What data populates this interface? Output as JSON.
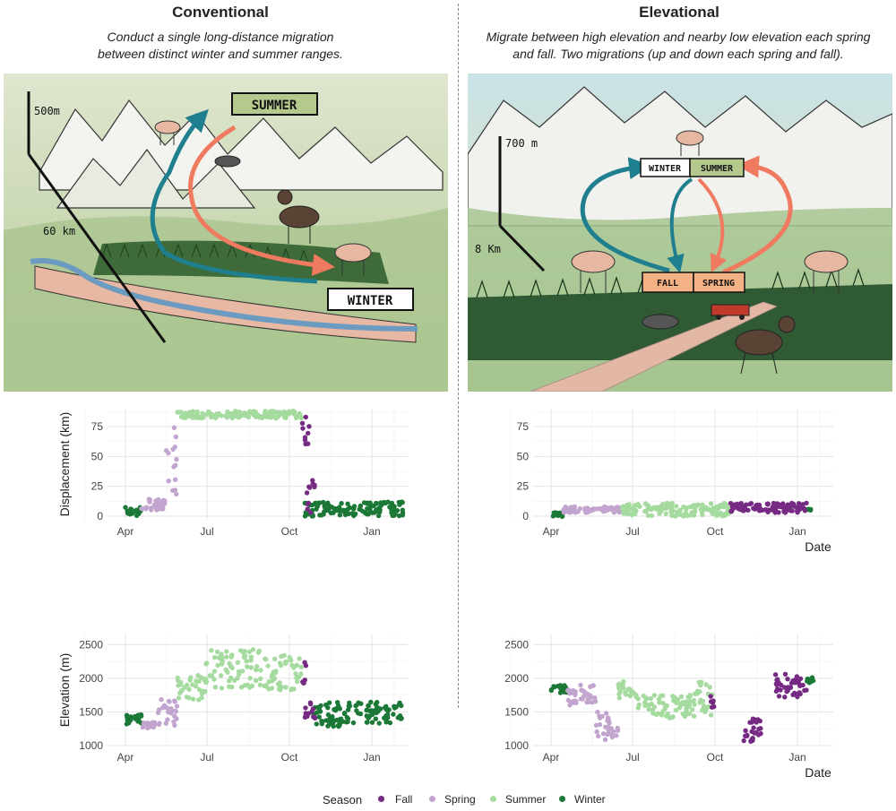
{
  "left": {
    "title": "Conventional",
    "subtitle_line1": "Conduct a single long-distance migration",
    "subtitle_line2": "between distinct winter and summer ranges.",
    "illustration": {
      "scale_vertical": "500m",
      "scale_horizontal": "60 km",
      "label_summer": "SUMMER",
      "label_winter": "WINTER"
    }
  },
  "right": {
    "title": "Elevational",
    "subtitle_line1": "Migrate between high elevation and nearby low elevation each spring",
    "subtitle_line2": "and fall. Two migrations (up and down each spring and fall).",
    "illustration": {
      "scale_vertical": "700 m",
      "scale_horizontal": "8 Km",
      "label_winter": "WINTER",
      "label_summer": "SUMMER",
      "label_fall": "FALL",
      "label_spring": "SPRING"
    }
  },
  "colors": {
    "Fall": "#762a83",
    "Spring": "#c2a5cf",
    "Summer": "#a6dba0",
    "Winter": "#1b7837",
    "teal_arrow": "#1f7f8f",
    "salmon_arrow": "#f07a5f"
  },
  "legend": {
    "title": "Season",
    "items": [
      "Fall",
      "Spring",
      "Summer",
      "Winter"
    ]
  },
  "chart_data": [
    {
      "id": "conv-disp",
      "type": "scatter",
      "panel": "Conventional",
      "xlabel": "",
      "ylabel": "Displacement (km)",
      "x_ticks": [
        "Apr",
        "Jul",
        "Oct",
        "Jan"
      ],
      "y_ticks": [
        0,
        25,
        50,
        75
      ],
      "ylim": [
        -3,
        90
      ],
      "series": [
        {
          "name": "Winter",
          "segments": [
            {
              "x": [
                0,
                18
              ],
              "y": [
                0,
                8
              ]
            },
            {
              "x": [
                200,
                310
              ],
              "y": [
                0,
                12
              ]
            }
          ]
        },
        {
          "name": "Spring",
          "segments": [
            {
              "x": [
                18,
                45
              ],
              "y": [
                5,
                15
              ]
            },
            {
              "x": [
                45,
                58
              ],
              "y": [
                15,
                80
              ]
            }
          ]
        },
        {
          "name": "Summer",
          "segments": [
            {
              "x": [
                58,
                197
              ],
              "y": [
                82,
                88
              ]
            }
          ]
        },
        {
          "name": "Fall",
          "segments": [
            {
              "x": [
                197,
                205
              ],
              "y": [
                60,
                88
              ]
            },
            {
              "x": [
                202,
                212
              ],
              "y": [
                3,
                35
              ]
            }
          ]
        }
      ]
    },
    {
      "id": "elev-disp",
      "type": "scatter",
      "panel": "Elevational",
      "xlabel": "Date",
      "ylabel": "",
      "x_ticks": [
        "Apr",
        "Jul",
        "Oct",
        "Jan"
      ],
      "y_ticks": [
        0,
        25,
        50,
        75
      ],
      "ylim": [
        -3,
        90
      ],
      "series": [
        {
          "name": "Winter",
          "segments": [
            {
              "x": [
                0,
                14
              ],
              "y": [
                -1,
                3
              ]
            },
            {
              "x": [
                285,
                290
              ],
              "y": [
                5,
                6
              ]
            }
          ]
        },
        {
          "name": "Spring",
          "segments": [
            {
              "x": [
                14,
                80
              ],
              "y": [
                3,
                8
              ]
            }
          ]
        },
        {
          "name": "Summer",
          "segments": [
            {
              "x": [
                80,
                200
              ],
              "y": [
                0,
                11
              ]
            }
          ]
        },
        {
          "name": "Fall",
          "segments": [
            {
              "x": [
                200,
                285
              ],
              "y": [
                3,
                11
              ]
            }
          ]
        }
      ]
    },
    {
      "id": "conv-elev",
      "type": "scatter",
      "panel": "Conventional",
      "xlabel": "",
      "ylabel": "Elevation (m)",
      "x_ticks": [
        "Apr",
        "Jul",
        "Oct",
        "Jan"
      ],
      "y_ticks": [
        1000,
        1500,
        2000,
        2500
      ],
      "ylim": [
        1000,
        2650
      ],
      "series": [
        {
          "name": "Winter",
          "segments": [
            {
              "x": [
                0,
                18
              ],
              "y": [
                1320,
                1460
              ]
            },
            {
              "x": [
                210,
                310
              ],
              "y": [
                1280,
                1650
              ]
            }
          ]
        },
        {
          "name": "Spring",
          "segments": [
            {
              "x": [
                18,
                35
              ],
              "y": [
                1250,
                1350
              ]
            },
            {
              "x": [
                35,
                58
              ],
              "y": [
                1300,
                1700
              ]
            }
          ]
        },
        {
          "name": "Summer",
          "segments": [
            {
              "x": [
                58,
                90
              ],
              "y": [
                1650,
                2050
              ]
            },
            {
              "x": [
                90,
                150
              ],
              "y": [
                1850,
                2450
              ]
            },
            {
              "x": [
                150,
                197
              ],
              "y": [
                1800,
                2350
              ]
            }
          ]
        },
        {
          "name": "Fall",
          "segments": [
            {
              "x": [
                197,
                202
              ],
              "y": [
                1900,
                2250
              ]
            },
            {
              "x": [
                200,
                212
              ],
              "y": [
                1400,
                1650
              ]
            }
          ]
        }
      ]
    },
    {
      "id": "elev-elev",
      "type": "scatter",
      "panel": "Elevational",
      "xlabel": "Date",
      "ylabel": "",
      "x_ticks": [
        "Apr",
        "Jul",
        "Oct",
        "Jan"
      ],
      "y_ticks": [
        1000,
        1500,
        2000,
        2500
      ],
      "ylim": [
        1000,
        2650
      ],
      "series": [
        {
          "name": "Winter",
          "segments": [
            {
              "x": [
                0,
                18
              ],
              "y": [
                1780,
                1900
              ]
            },
            {
              "x": [
                285,
                293
              ],
              "y": [
                1920,
                2020
              ]
            }
          ]
        },
        {
          "name": "Spring",
          "segments": [
            {
              "x": [
                18,
                50
              ],
              "y": [
                1600,
                1900
              ]
            },
            {
              "x": [
                50,
                75
              ],
              "y": [
                1050,
                1500
              ]
            }
          ]
        },
        {
          "name": "Summer",
          "segments": [
            {
              "x": [
                75,
                95
              ],
              "y": [
                1700,
                1950
              ]
            },
            {
              "x": [
                95,
                160
              ],
              "y": [
                1400,
                1750
              ]
            },
            {
              "x": [
                160,
                180
              ],
              "y": [
                1450,
                2000
              ]
            }
          ]
        },
        {
          "name": "Fall",
          "segments": [
            {
              "x": [
                178,
                183
              ],
              "y": [
                1550,
                1750
              ]
            },
            {
              "x": [
                215,
                240
              ],
              "y": [
                1050,
                1400
              ]
            },
            {
              "x": [
                250,
                285
              ],
              "y": [
                1700,
                2080
              ]
            }
          ]
        }
      ]
    }
  ]
}
